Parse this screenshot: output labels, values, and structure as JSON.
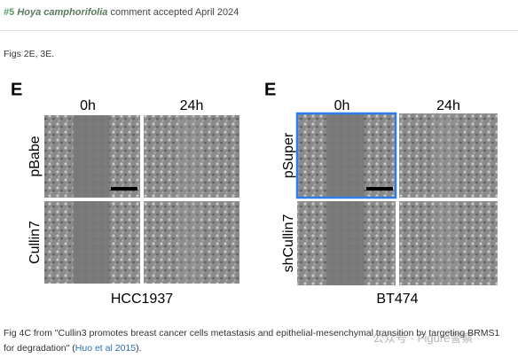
{
  "header": {
    "number": "#5",
    "user": "Hoya camphorifolia",
    "status": "comment accepted April 2024"
  },
  "body": {
    "text": "Figs 2E, 3E."
  },
  "figure": {
    "left": {
      "panel": "E",
      "columns": [
        "0h",
        "24h"
      ],
      "rows": [
        "pBabe",
        "Cullin7"
      ],
      "cell_line": "HCC1937"
    },
    "right": {
      "panel": "E",
      "columns": [
        "0h",
        "24h"
      ],
      "rows": [
        "pSuper",
        "shCullin7"
      ],
      "cell_line": "BT474"
    }
  },
  "caption": {
    "before": "Fig 4C from \"Cullin3 promotes breast cancer cells metastasis and epithelial-mesenchymal transition by targeting BRMS1 for degradation\" (",
    "link": "Huo et al 2015",
    "after": ")."
  },
  "watermark": "公众号 · Figure警察"
}
